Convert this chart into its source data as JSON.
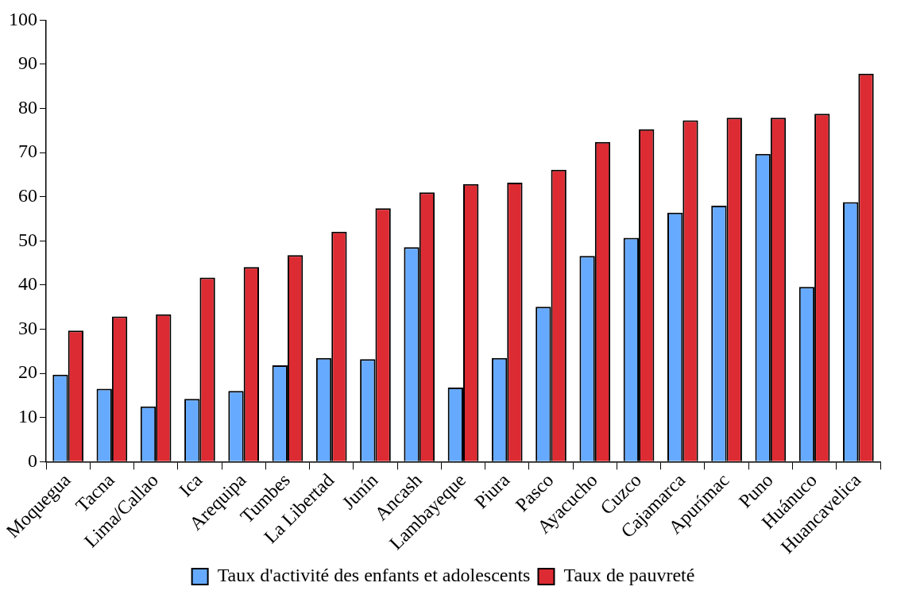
{
  "chart_data": {
    "type": "bar",
    "categories": [
      "Moquegua",
      "Tacna",
      "Lima/Callao",
      "Ica",
      "Arequipa",
      "Tumbes",
      "La Libertad",
      "Junín",
      "Ancash",
      "Lambayeque",
      "Piura",
      "Pasco",
      "Ayacucho",
      "Cuzco",
      "Cajamarca",
      "Apurímac",
      "Puno",
      "Huánuco",
      "Huancavelica"
    ],
    "series": [
      {
        "name": "Taux d'activité des enfants et adolescents",
        "color": "#66aaff",
        "values": [
          19.7,
          16.5,
          12.5,
          14.2,
          16.0,
          21.8,
          23.5,
          23.2,
          48.6,
          16.8,
          23.5,
          35.1,
          46.6,
          50.7,
          56.4,
          58.0,
          69.7,
          39.6,
          58.8
        ]
      },
      {
        "name": "Taux de pauvreté",
        "color": "#dd2b33",
        "values": [
          29.7,
          32.9,
          33.4,
          41.7,
          44.1,
          46.8,
          52.1,
          57.4,
          61.0,
          62.9,
          63.2,
          66.1,
          72.4,
          75.3,
          77.3,
          77.9,
          77.9,
          78.8,
          87.9
        ]
      }
    ],
    "ylim": [
      0,
      100
    ],
    "yticks": [
      0,
      10,
      20,
      30,
      40,
      50,
      60,
      70,
      80,
      90,
      100
    ],
    "grid": false,
    "legend": "bottom"
  }
}
